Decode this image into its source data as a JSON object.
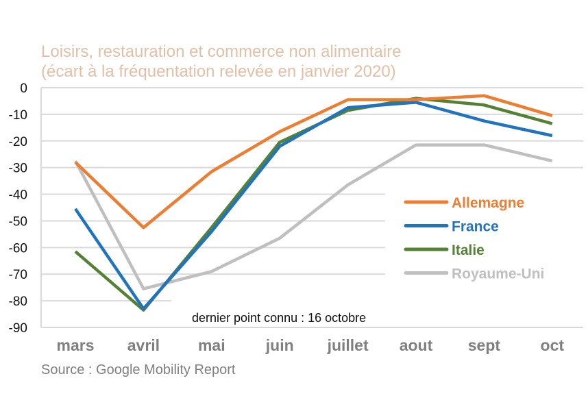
{
  "chart_data": {
    "type": "line",
    "title": "Loisirs, restauration et commerce non alimentaire",
    "subtitle": "(écart à la fréquentation relevée en janvier 2020)",
    "xlabel": "",
    "ylabel": "",
    "categories": [
      "mars",
      "avril",
      "mai",
      "juin",
      "juillet",
      "aout",
      "sept",
      "oct"
    ],
    "ylim": [
      -90,
      0
    ],
    "yticks": [
      "0",
      "-10",
      "-20",
      "-30",
      "-40",
      "-50",
      "-60",
      "-70",
      "-80",
      "-90"
    ],
    "grid": true,
    "legend_position": "right",
    "series": [
      {
        "name": "Allemagne",
        "color": "#ED7D31",
        "values": [
          -28,
          -52.5,
          -31.5,
          -16.5,
          -4.5,
          -4.5,
          -3,
          -10.5
        ]
      },
      {
        "name": "France",
        "color": "#2173BE",
        "values": [
          -45.5,
          -83,
          -54,
          -22,
          -7.5,
          -5.5,
          -12.5,
          -18
        ]
      },
      {
        "name": "Italie",
        "color": "#548235",
        "values": [
          -61.5,
          -83.5,
          -52.5,
          -20.5,
          -8.5,
          -4,
          -6.5,
          -13.5
        ]
      },
      {
        "name": "Royaume-Uni",
        "color": "#BFBFBF",
        "values": [
          -27.5,
          -75.5,
          -69,
          -56.5,
          -36.5,
          -21.5,
          -21.5,
          -27.5
        ]
      }
    ],
    "annotation": "dernier point connu : 16 octobre",
    "source": "Source : Google Mobility Report"
  }
}
